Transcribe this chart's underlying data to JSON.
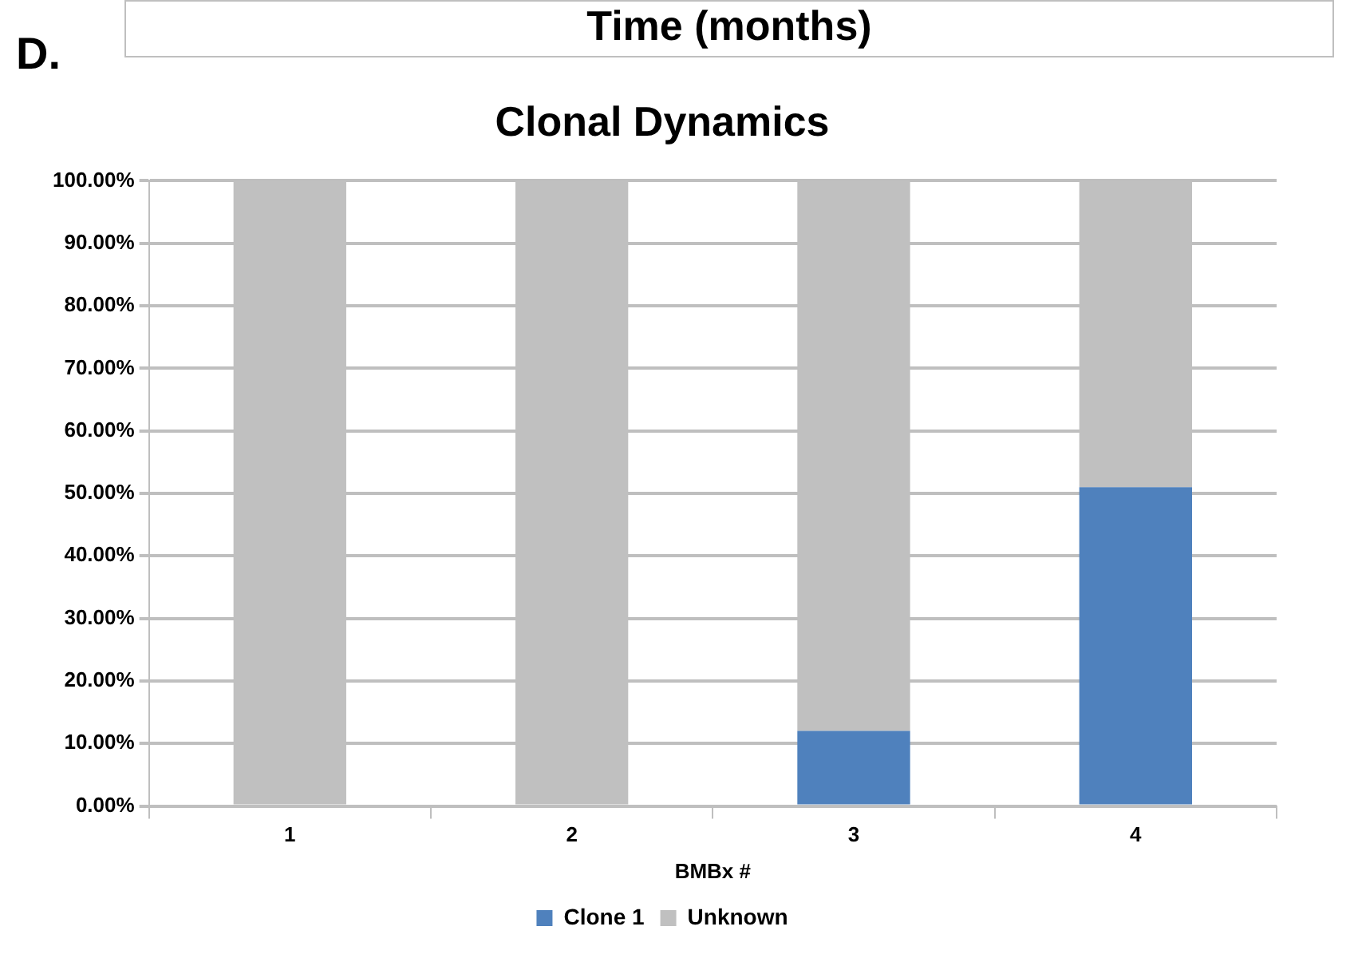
{
  "chart_data": {
    "type": "bar",
    "title": "Clonal Dynamics",
    "xlabel": "BMBx #",
    "annotations": [
      "D.",
      "Time (months)"
    ],
    "categories": [
      "1",
      "2",
      "3",
      "4"
    ],
    "series": [
      {
        "name": "Clone 1",
        "color": "#4f81bd",
        "values": [
          0,
          0,
          12,
          51
        ]
      },
      {
        "name": "Unknown",
        "color": "#c0c0c0",
        "values": [
          100,
          100,
          88,
          49
        ]
      }
    ],
    "stacked": true,
    "ylim": [
      0,
      100
    ],
    "yticks": [
      {
        "value": 0,
        "label": "0.00%"
      },
      {
        "value": 10,
        "label": "10.00%"
      },
      {
        "value": 20,
        "label": "20.00%"
      },
      {
        "value": 30,
        "label": "30.00%"
      },
      {
        "value": 40,
        "label": "40.00%"
      },
      {
        "value": 50,
        "label": "50.00%"
      },
      {
        "value": 60,
        "label": "60.00%"
      },
      {
        "value": 70,
        "label": "70.00%"
      },
      {
        "value": 80,
        "label": "80.00%"
      },
      {
        "value": 90,
        "label": "90.00%"
      },
      {
        "value": 100,
        "label": "100.00%"
      }
    ],
    "grid": "y",
    "legend": "bottom"
  }
}
